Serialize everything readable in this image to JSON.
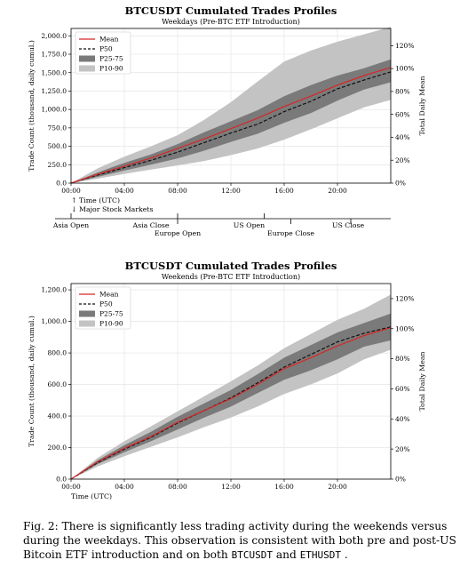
{
  "chart_data": [
    {
      "type": "area",
      "title": "BTCUSDT Cumulated Trades Profiles",
      "subtitle": "Weekdays (Pre-BTC ETF Introduction)",
      "ylabel": "Trade Count (thousand, daily cumul.)",
      "y2label": "Total Daily Mean",
      "xlabel": "↑ Time (UTC)",
      "xlabel2": "↓ Major Stock Markets",
      "xlim": [
        0,
        24
      ],
      "ylim": [
        0,
        2100
      ],
      "y2lim": [
        0,
        1.35
      ],
      "xticks": [
        "00:00",
        "04:00",
        "08:00",
        "12:00",
        "16:00",
        "20:00"
      ],
      "yticks": [
        "0.0",
        "250.0",
        "500.0",
        "750.0",
        "1,000.0",
        "1,250.0",
        "1,500.0",
        "1,750.0",
        "2,000.0"
      ],
      "y2ticks": [
        "0%",
        "20%",
        "40%",
        "60%",
        "80%",
        "100%",
        "120%"
      ],
      "legend": [
        "Mean",
        "P50",
        "P25-75",
        "P10-90"
      ],
      "legend_position": "top-left",
      "grid": true,
      "colors": {
        "mean": "#d62728",
        "p50": "#111111",
        "p2575": "#7a7a7a",
        "p1090": "#c3c3c3"
      },
      "x": [
        0,
        2,
        4,
        6,
        8,
        10,
        12,
        14,
        16,
        18,
        20,
        22,
        24
      ],
      "series": [
        {
          "name": "Mean",
          "values": [
            0,
            120,
            230,
            340,
            470,
            600,
            740,
            880,
            1040,
            1180,
            1330,
            1460,
            1570
          ]
        },
        {
          "name": "P50",
          "values": [
            0,
            110,
            210,
            310,
            420,
            550,
            680,
            800,
            970,
            1110,
            1280,
            1400,
            1510
          ]
        },
        {
          "name": "P25-75 low",
          "values": [
            0,
            85,
            170,
            250,
            335,
            440,
            560,
            670,
            820,
            950,
            1120,
            1270,
            1370
          ]
        },
        {
          "name": "P25-75 high",
          "values": [
            0,
            145,
            275,
            390,
            530,
            690,
            840,
            990,
            1180,
            1330,
            1460,
            1560,
            1680
          ]
        },
        {
          "name": "P10-90 low",
          "values": [
            0,
            60,
            125,
            185,
            240,
            300,
            380,
            470,
            590,
            730,
            880,
            1030,
            1130
          ]
        },
        {
          "name": "P10-90 high",
          "values": [
            0,
            200,
            360,
            500,
            650,
            860,
            1100,
            1380,
            1650,
            1800,
            1920,
            2020,
            2120
          ]
        }
      ],
      "markets": {
        "opens": [
          {
            "label": "Asia Open",
            "x": 0
          },
          {
            "label": "Europe Open",
            "x": 8
          },
          {
            "label": "US Open",
            "x": 14.5
          }
        ],
        "closes": [
          {
            "label": "Asia Close",
            "x": 8
          },
          {
            "label": "Europe Close",
            "x": 16.5
          },
          {
            "label": "US Close",
            "x": 21
          }
        ]
      }
    },
    {
      "type": "area",
      "title": "BTCUSDT Cumulated Trades Profiles",
      "subtitle": "Weekends (Pre-BTC ETF Introduction)",
      "ylabel": "Trade Count (thousand, daily cumul.)",
      "y2label": "Total Daily Mean",
      "xlabel": "Time (UTC)",
      "xlim": [
        0,
        24
      ],
      "ylim": [
        0,
        1240
      ],
      "y2lim": [
        0,
        1.3
      ],
      "xticks": [
        "00:00",
        "04:00",
        "08:00",
        "12:00",
        "16:00",
        "20:00"
      ],
      "yticks": [
        "0.0",
        "200.0",
        "400.0",
        "600.0",
        "800.0",
        "1,000.0",
        "1,200.0"
      ],
      "y2ticks": [
        "0%",
        "20%",
        "40%",
        "60%",
        "80%",
        "100%",
        "120%"
      ],
      "legend": [
        "Mean",
        "P50",
        "P25-75",
        "P10-90"
      ],
      "legend_position": "top-left",
      "grid": true,
      "colors": {
        "mean": "#d62728",
        "p50": "#111111",
        "p2575": "#7a7a7a",
        "p1090": "#c3c3c3"
      },
      "x": [
        0,
        2,
        4,
        6,
        8,
        10,
        12,
        14,
        16,
        18,
        20,
        22,
        24
      ],
      "series": [
        {
          "name": "Mean",
          "values": [
            0,
            110,
            195,
            270,
            360,
            435,
            510,
            600,
            700,
            770,
            845,
            910,
            960
          ]
        },
        {
          "name": "P50",
          "values": [
            0,
            105,
            190,
            265,
            355,
            435,
            515,
            610,
            710,
            790,
            870,
            925,
            965
          ]
        },
        {
          "name": "P25-75 low",
          "values": [
            0,
            95,
            170,
            240,
            315,
            390,
            460,
            545,
            630,
            690,
            760,
            840,
            880
          ]
        },
        {
          "name": "P25-75 high",
          "values": [
            0,
            120,
            215,
            300,
            395,
            480,
            565,
            665,
            770,
            850,
            930,
            990,
            1050
          ]
        },
        {
          "name": "P10-90 low",
          "values": [
            0,
            80,
            145,
            205,
            265,
            330,
            390,
            460,
            540,
            600,
            670,
            760,
            820
          ]
        },
        {
          "name": "P10-90 high",
          "values": [
            0,
            135,
            240,
            335,
            430,
            525,
            620,
            720,
            830,
            920,
            1010,
            1080,
            1170
          ]
        }
      ]
    }
  ],
  "caption": {
    "prefix": "Fig. 2:",
    "text": "There is significantly less trading activity during the weekends versus during the weekdays. This observation is consistent with both pre and post-US Bitcoin ETF introduction and on both",
    "code1": "BTCUSDT",
    "and": "and",
    "code2": "ETHUSDT",
    "end": "."
  }
}
